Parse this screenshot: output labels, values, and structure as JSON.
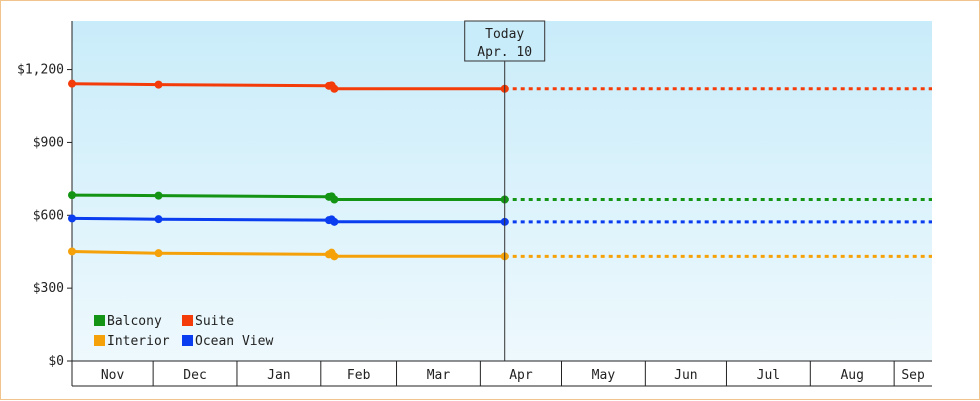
{
  "chart_data": {
    "type": "line",
    "title": "",
    "xlabel": "",
    "ylabel": "",
    "ylim": [
      0,
      1400
    ],
    "y_ticks": [
      {
        "value": 0,
        "label": "$0"
      },
      {
        "value": 300,
        "label": "$300"
      },
      {
        "value": 600,
        "label": "$600"
      },
      {
        "value": 900,
        "label": "$900"
      },
      {
        "value": 1200,
        "label": "$1,200"
      }
    ],
    "x_range": [
      "2024-11-01",
      "2025-09-15"
    ],
    "x_months": [
      {
        "label": "Nov",
        "start": "2024-11-01"
      },
      {
        "label": "Dec",
        "start": "2024-12-01"
      },
      {
        "label": "Jan",
        "start": "2025-01-01"
      },
      {
        "label": "Feb",
        "start": "2025-02-01"
      },
      {
        "label": "Mar",
        "start": "2025-03-01"
      },
      {
        "label": "Apr",
        "start": "2025-04-01"
      },
      {
        "label": "May",
        "start": "2025-05-01"
      },
      {
        "label": "Jun",
        "start": "2025-06-01"
      },
      {
        "label": "Jul",
        "start": "2025-07-01"
      },
      {
        "label": "Aug",
        "start": "2025-08-01"
      },
      {
        "label": "Sep",
        "start": "2025-09-01"
      }
    ],
    "today": {
      "title": "Today",
      "label": "Apr. 10",
      "date": "2025-04-10"
    },
    "grid": false,
    "legend_position": "bottom-left",
    "series": [
      {
        "name": "Balcony",
        "color": "#149414",
        "points": [
          {
            "x": "2024-11-01",
            "y": 683
          },
          {
            "x": "2024-12-03",
            "y": 681
          },
          {
            "x": "2025-02-04",
            "y": 676
          },
          {
            "x": "2025-02-05",
            "y": 678
          },
          {
            "x": "2025-02-06",
            "y": 665
          },
          {
            "x": "2025-04-10",
            "y": 665
          }
        ]
      },
      {
        "name": "Suite",
        "color": "#f33c0a",
        "points": [
          {
            "x": "2024-11-01",
            "y": 1142
          },
          {
            "x": "2024-12-03",
            "y": 1138
          },
          {
            "x": "2025-02-04",
            "y": 1133
          },
          {
            "x": "2025-02-05",
            "y": 1135
          },
          {
            "x": "2025-02-06",
            "y": 1121
          },
          {
            "x": "2025-04-10",
            "y": 1121
          }
        ]
      },
      {
        "name": "Interior",
        "color": "#f5a20a",
        "points": [
          {
            "x": "2024-11-01",
            "y": 451
          },
          {
            "x": "2024-12-03",
            "y": 444
          },
          {
            "x": "2025-02-04",
            "y": 439
          },
          {
            "x": "2025-02-05",
            "y": 446
          },
          {
            "x": "2025-02-06",
            "y": 431
          },
          {
            "x": "2025-04-10",
            "y": 431
          }
        ]
      },
      {
        "name": "Ocean View",
        "color": "#0a3cf0",
        "points": [
          {
            "x": "2024-11-01",
            "y": 587
          },
          {
            "x": "2024-12-03",
            "y": 584
          },
          {
            "x": "2025-02-04",
            "y": 580
          },
          {
            "x": "2025-02-05",
            "y": 583
          },
          {
            "x": "2025-02-06",
            "y": 573
          },
          {
            "x": "2025-04-10",
            "y": 573
          }
        ]
      }
    ],
    "legend": [
      {
        "name": "Balcony",
        "color": "#149414"
      },
      {
        "name": "Suite",
        "color": "#f33c0a"
      },
      {
        "name": "Interior",
        "color": "#f5a20a"
      },
      {
        "name": "Ocean View",
        "color": "#0a3cf0"
      }
    ]
  }
}
